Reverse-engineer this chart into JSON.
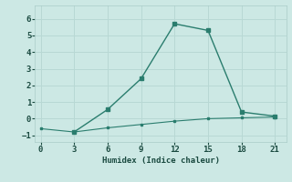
{
  "xlabel": "Humidex (Indice chaleur)",
  "line1_x": [
    3,
    6,
    9,
    12,
    15,
    18,
    21
  ],
  "line1_y": [
    -0.8,
    0.55,
    2.4,
    5.7,
    5.3,
    0.4,
    0.15
  ],
  "line2_x": [
    0,
    3,
    6,
    9,
    12,
    15,
    18,
    21
  ],
  "line2_y": [
    -0.6,
    -0.8,
    -0.55,
    -0.35,
    -0.15,
    0.0,
    0.05,
    0.1
  ],
  "line_color": "#2a7d6e",
  "bg_color": "#cce8e4",
  "grid_major_color": "#b8d8d4",
  "grid_minor_color": "#c8e4e0",
  "xticks": [
    0,
    3,
    6,
    9,
    12,
    15,
    18,
    21
  ],
  "yticks": [
    -1,
    0,
    1,
    2,
    3,
    4,
    5,
    6
  ],
  "xlim": [
    -0.5,
    22
  ],
  "ylim": [
    -1.4,
    6.8
  ]
}
